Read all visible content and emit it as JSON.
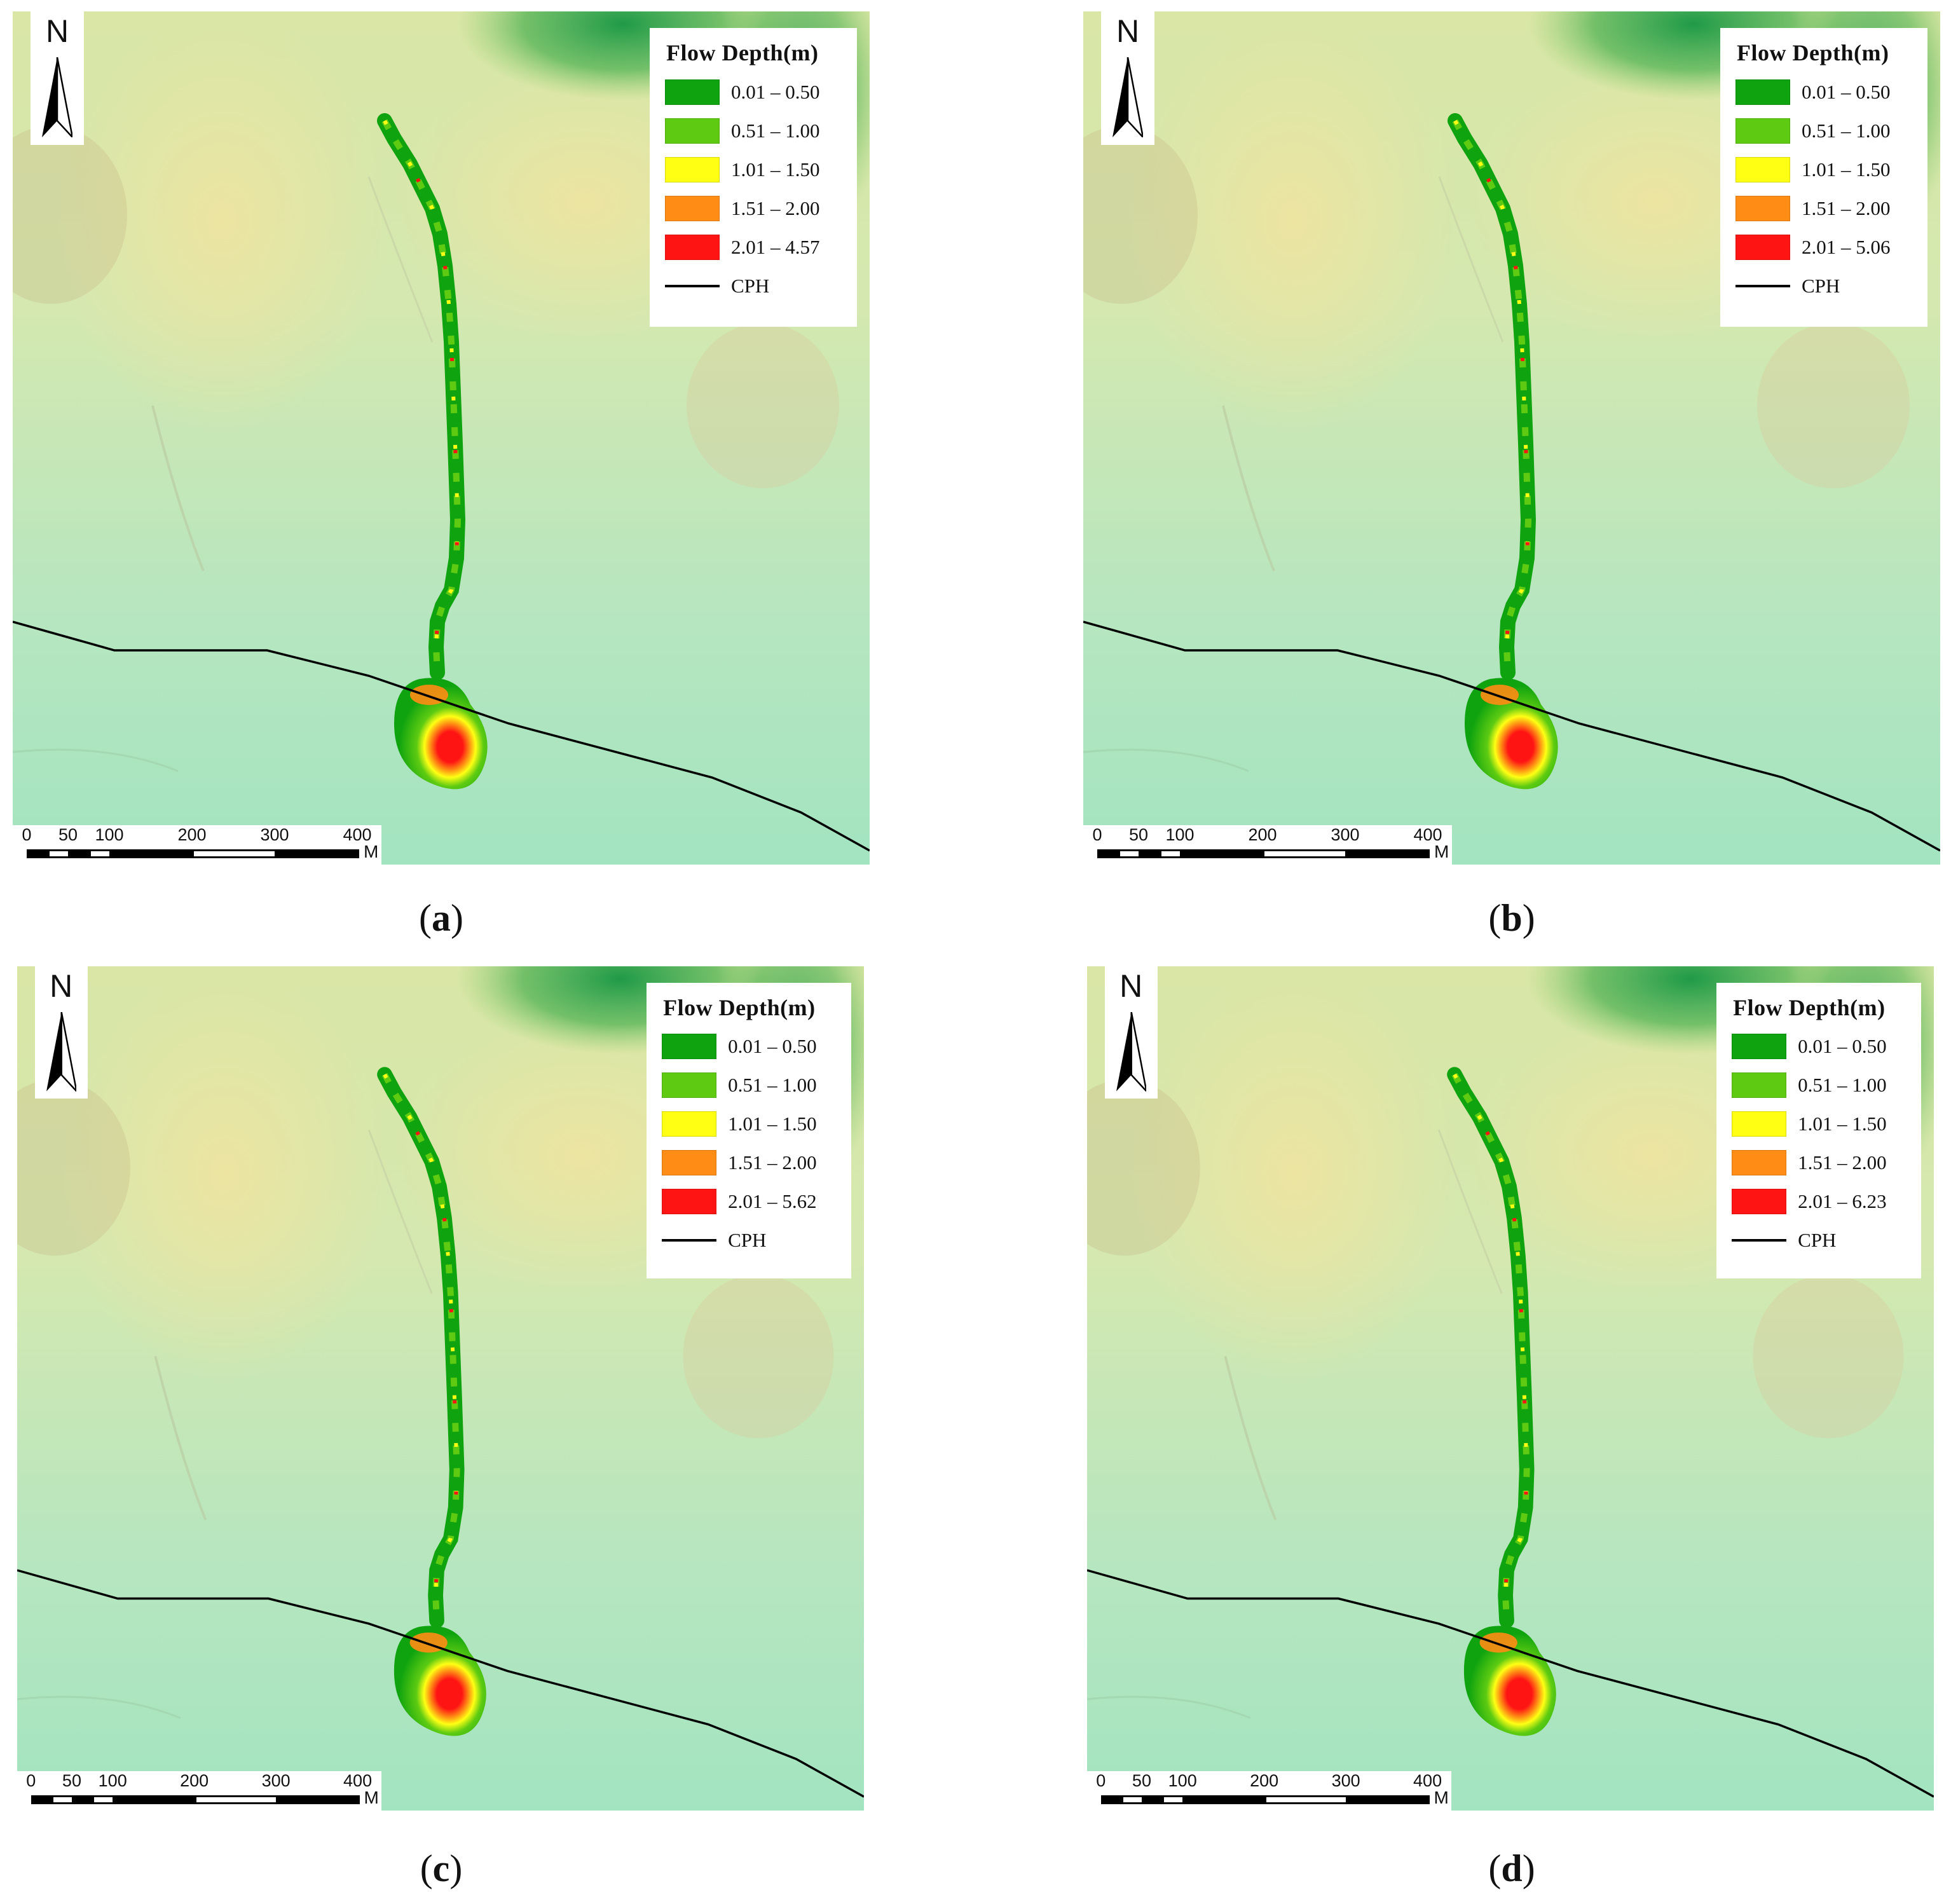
{
  "north_letter": "N",
  "scale_ticks": [
    "0",
    "50",
    "100",
    "200",
    "300",
    "400"
  ],
  "scale_unit": "M",
  "legend_title": "Flow Depth(m)",
  "legend_colors": [
    "#0fa30f",
    "#5ecb12",
    "#ffff14",
    "#ff8c14",
    "#ff1414"
  ],
  "cph_label": "CPH",
  "panels": [
    {
      "caption_label": "a",
      "legend_items": [
        "0.01 – 0.50",
        "0.51 – 1.00",
        "1.01 – 1.50",
        "1.51 – 2.00",
        "2.01 – 4.57"
      ]
    },
    {
      "caption_label": "b",
      "legend_items": [
        "0.01 – 0.50",
        "0.51 – 1.00",
        "1.01 – 1.50",
        "1.51 – 2.00",
        "2.01 – 5.06"
      ]
    },
    {
      "caption_label": "c",
      "legend_items": [
        "0.01 – 0.50",
        "0.51 – 1.00",
        "1.01 – 1.50",
        "1.51 – 2.00",
        "2.01 – 5.62"
      ]
    },
    {
      "caption_label": "d",
      "legend_items": [
        "0.01 – 0.50",
        "0.51 – 1.00",
        "1.01 – 1.50",
        "1.51 – 2.00",
        "2.01 – 6.23"
      ]
    }
  ]
}
